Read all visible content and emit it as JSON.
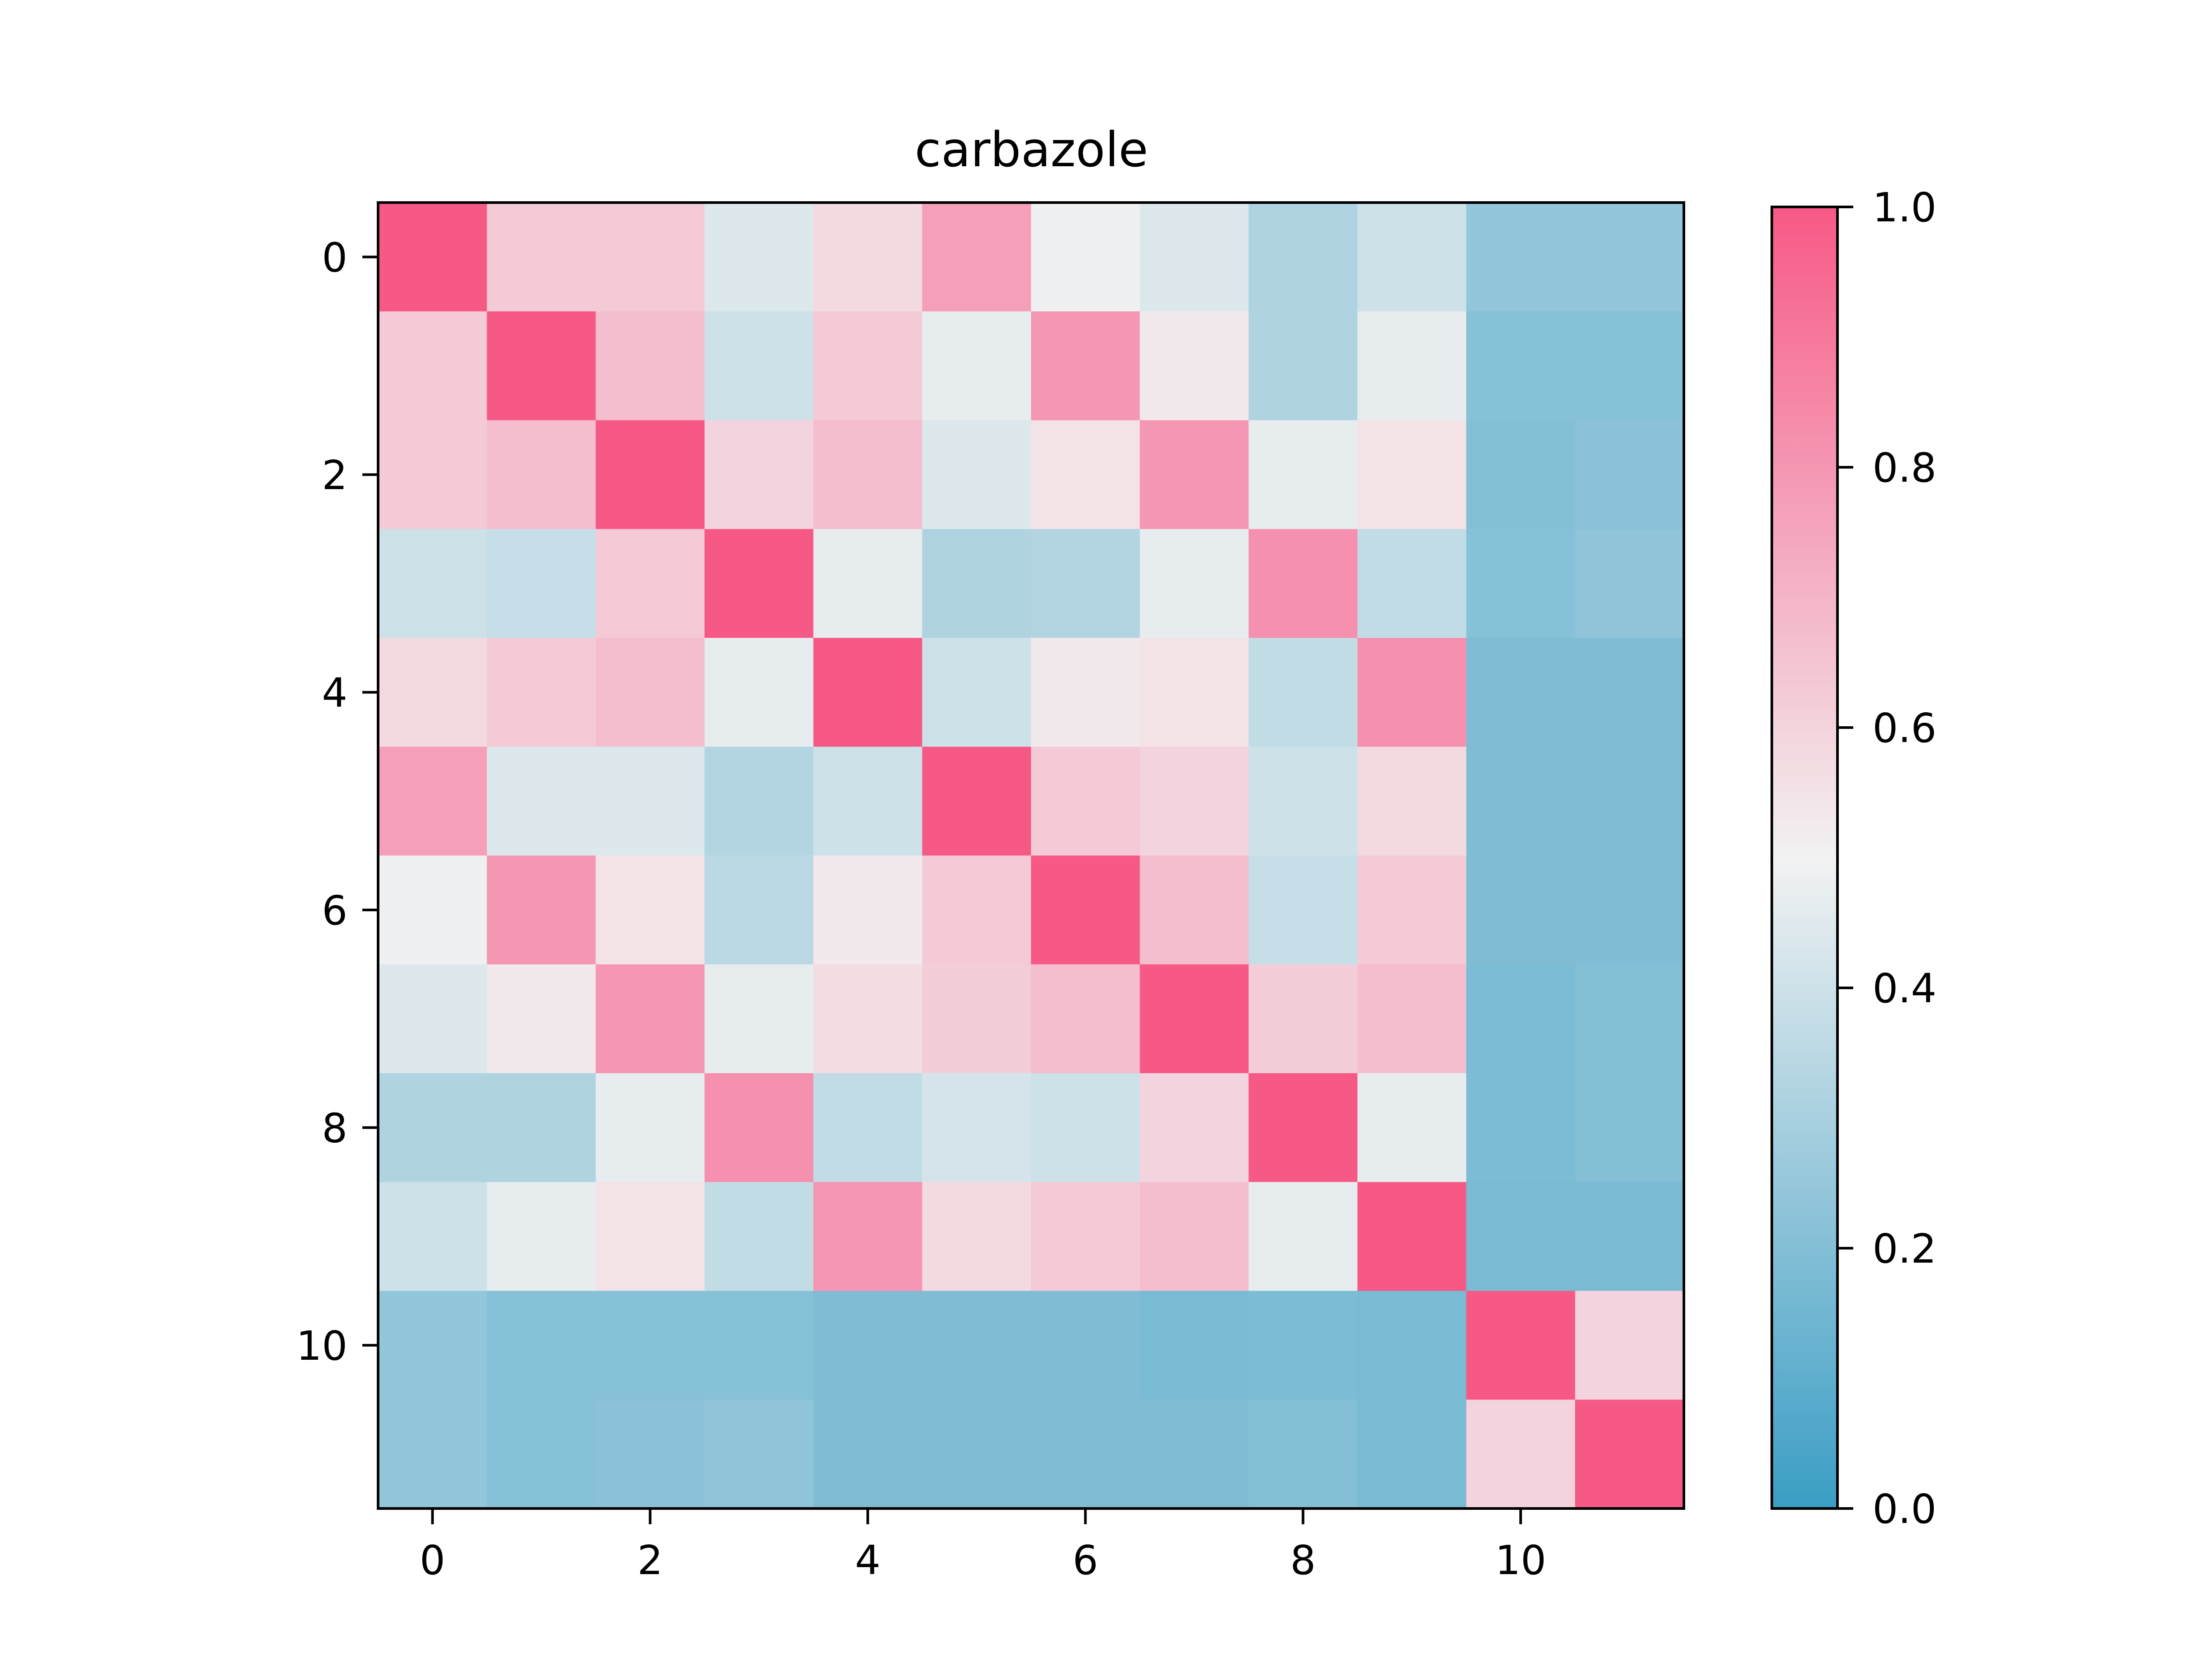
{
  "chart_data": {
    "type": "heatmap",
    "title": "carbazole",
    "xlabel": "",
    "ylabel": "",
    "x_ticks": [
      0,
      2,
      4,
      6,
      8,
      10
    ],
    "y_ticks": [
      0,
      2,
      4,
      6,
      8,
      10
    ],
    "x_tick_labels": [
      "0",
      "2",
      "4",
      "6",
      "8",
      "10"
    ],
    "y_tick_labels": [
      "0",
      "2",
      "4",
      "6",
      "8",
      "10"
    ],
    "xlim": [
      -0.5,
      11.5
    ],
    "ylim": [
      11.5,
      -0.5
    ],
    "colorbar": {
      "range": [
        0.0,
        1.0
      ],
      "ticks": [
        0.0,
        0.2,
        0.4,
        0.6,
        0.8,
        1.0
      ],
      "tick_labels": [
        "0.0",
        "0.2",
        "0.4",
        "0.6",
        "0.8",
        "1.0"
      ],
      "colors": [
        "#3a9dc4",
        "#f2f2f2",
        "#f75987"
      ]
    },
    "matrix": [
      [
        1.0,
        0.63,
        0.63,
        0.44,
        0.58,
        0.77,
        0.49,
        0.44,
        0.32,
        0.4,
        0.24,
        0.24
      ],
      [
        0.63,
        1.0,
        0.67,
        0.4,
        0.63,
        0.47,
        0.8,
        0.53,
        0.32,
        0.47,
        0.21,
        0.21
      ],
      [
        0.63,
        0.67,
        1.0,
        0.6,
        0.67,
        0.44,
        0.55,
        0.8,
        0.47,
        0.55,
        0.2,
        0.22
      ],
      [
        0.4,
        0.38,
        0.63,
        1.0,
        0.47,
        0.32,
        0.33,
        0.47,
        0.82,
        0.37,
        0.21,
        0.23
      ],
      [
        0.58,
        0.63,
        0.67,
        0.47,
        1.0,
        0.4,
        0.53,
        0.55,
        0.37,
        0.82,
        0.19,
        0.19
      ],
      [
        0.77,
        0.44,
        0.44,
        0.33,
        0.4,
        1.0,
        0.63,
        0.6,
        0.4,
        0.58,
        0.19,
        0.19
      ],
      [
        0.49,
        0.8,
        0.55,
        0.35,
        0.53,
        0.63,
        1.0,
        0.67,
        0.38,
        0.63,
        0.19,
        0.19
      ],
      [
        0.44,
        0.53,
        0.8,
        0.47,
        0.57,
        0.62,
        0.67,
        1.0,
        0.62,
        0.67,
        0.18,
        0.2
      ],
      [
        0.32,
        0.32,
        0.47,
        0.82,
        0.37,
        0.42,
        0.4,
        0.6,
        1.0,
        0.47,
        0.18,
        0.2
      ],
      [
        0.4,
        0.47,
        0.55,
        0.37,
        0.8,
        0.58,
        0.63,
        0.67,
        0.47,
        1.0,
        0.17,
        0.17
      ],
      [
        0.24,
        0.21,
        0.21,
        0.21,
        0.19,
        0.19,
        0.19,
        0.17,
        0.18,
        0.17,
        1.0,
        0.6
      ],
      [
        0.24,
        0.21,
        0.22,
        0.23,
        0.19,
        0.19,
        0.19,
        0.19,
        0.2,
        0.17,
        0.6,
        1.0
      ]
    ]
  }
}
